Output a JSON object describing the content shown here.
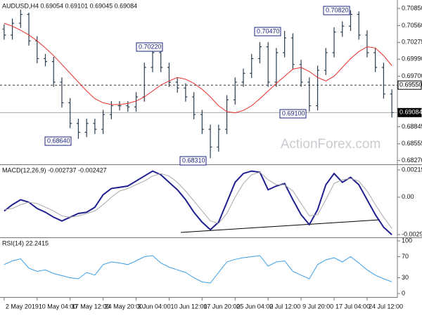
{
  "watermark": "ActionForex.com",
  "chart_data": [
    {
      "type": "ohlc",
      "title": "AUDUSD,H4 0.69054 0.69101 0.69045 0.69084",
      "color": "#2c3e50",
      "x": [
        0,
        2,
        4,
        6,
        8,
        10,
        12,
        14,
        16,
        18,
        20,
        22,
        24,
        26,
        28,
        30,
        32,
        34,
        36,
        38,
        40,
        42,
        44,
        46,
        48,
        50,
        52,
        54,
        56,
        58,
        60,
        62,
        64,
        66,
        68,
        70,
        72,
        74,
        76,
        78,
        80,
        82,
        84,
        86,
        88,
        90,
        92,
        94
      ],
      "open": [
        0.705,
        0.704,
        0.706,
        0.7075,
        0.703,
        0.7,
        0.6995,
        0.696,
        0.6925,
        0.689,
        0.6875,
        0.689,
        0.688,
        0.6905,
        0.692,
        0.692,
        0.6918,
        0.6935,
        0.6985,
        0.701,
        0.6985,
        0.696,
        0.695,
        0.6935,
        0.6905,
        0.688,
        0.685,
        0.688,
        0.693,
        0.696,
        0.6975,
        0.7,
        0.702,
        0.696,
        0.701,
        0.7035,
        0.699,
        0.696,
        0.692,
        0.698,
        0.701,
        0.7045,
        0.7055,
        0.7075,
        0.704,
        0.701,
        0.6985,
        0.694
      ],
      "high": [
        0.7058,
        0.7068,
        0.7083,
        0.7078,
        0.7038,
        0.7008,
        0.7003,
        0.6968,
        0.6933,
        0.6898,
        0.6898,
        0.6898,
        0.6913,
        0.6928,
        0.6928,
        0.6928,
        0.6943,
        0.6993,
        0.7022,
        0.7018,
        0.6993,
        0.6968,
        0.6958,
        0.6943,
        0.6913,
        0.6888,
        0.6888,
        0.6938,
        0.6968,
        0.6983,
        0.7008,
        0.7028,
        0.7028,
        0.7018,
        0.7047,
        0.7043,
        0.6998,
        0.6968,
        0.6988,
        0.7018,
        0.7053,
        0.7063,
        0.7082,
        0.708,
        0.7048,
        0.7018,
        0.6993,
        0.6948
      ],
      "low": [
        0.7032,
        0.7032,
        0.7052,
        0.7022,
        0.6992,
        0.6987,
        0.6952,
        0.6917,
        0.6882,
        0.6864,
        0.6867,
        0.6872,
        0.6872,
        0.6897,
        0.6912,
        0.691,
        0.691,
        0.6927,
        0.6977,
        0.6977,
        0.6952,
        0.6942,
        0.6927,
        0.6897,
        0.6872,
        0.6831,
        0.6842,
        0.6872,
        0.6922,
        0.6952,
        0.6967,
        0.6992,
        0.6952,
        0.6952,
        0.7002,
        0.6982,
        0.6952,
        0.691,
        0.6912,
        0.6972,
        0.7002,
        0.7037,
        0.7047,
        0.7032,
        0.7002,
        0.6977,
        0.6932,
        0.69
      ],
      "close": [
        0.704,
        0.706,
        0.7075,
        0.703,
        0.7,
        0.6995,
        0.696,
        0.6925,
        0.689,
        0.6875,
        0.689,
        0.688,
        0.6905,
        0.692,
        0.692,
        0.6918,
        0.6935,
        0.6985,
        0.701,
        0.6985,
        0.696,
        0.695,
        0.6935,
        0.6905,
        0.688,
        0.685,
        0.688,
        0.693,
        0.696,
        0.6975,
        0.7,
        0.702,
        0.696,
        0.701,
        0.7035,
        0.699,
        0.696,
        0.692,
        0.698,
        0.701,
        0.7045,
        0.7055,
        0.7075,
        0.704,
        0.701,
        0.6985,
        0.694,
        0.69084
      ],
      "moving_average": {
        "color": "#e8302a",
        "values": [
          0.706,
          0.7055,
          0.7048,
          0.704,
          0.703,
          0.7018,
          0.7005,
          0.699,
          0.6975,
          0.696,
          0.6945,
          0.6932,
          0.6925,
          0.6922,
          0.6922,
          0.6924,
          0.6928,
          0.6935,
          0.6945,
          0.6955,
          0.6962,
          0.6968,
          0.6965,
          0.6958,
          0.6948,
          0.6935,
          0.692,
          0.691,
          0.6908,
          0.6912,
          0.692,
          0.6932,
          0.6945,
          0.6958,
          0.697,
          0.6982,
          0.6985,
          0.6978,
          0.6968,
          0.6962,
          0.697,
          0.6985,
          0.7,
          0.7012,
          0.702,
          0.7018,
          0.7005,
          0.6988
        ]
      },
      "xlim": [
        -1,
        95
      ],
      "ylim": [
        0.6823,
        0.7097
      ],
      "yticks": [
        {
          "value": 0.7085,
          "label": "0.70850"
        },
        {
          "value": 0.7056,
          "label": "0.70560"
        },
        0.70275,
        {
          "value": 0.6999,
          "label": "0.69990"
        },
        {
          "value": 0.697,
          "label": "0.69700"
        },
        0.68845,
        0.68555,
        {
          "value": 0.6827,
          "label": "0.68270"
        }
      ],
      "hlines": [
        {
          "value": 0.6955,
          "label": "0.69550",
          "dashed": true
        },
        {
          "value": 0.69084,
          "label": "0.69084",
          "dashed": false
        }
      ],
      "annotations": [
        "0.68640",
        "0.70220",
        "0.68310",
        "0.70470",
        "0.69100",
        "0.70820"
      ]
    },
    {
      "type": "line",
      "title": "MACD(12,26,9) -0.002737 -0.002427",
      "x": [
        0,
        2,
        4,
        6,
        8,
        10,
        12,
        14,
        16,
        18,
        20,
        22,
        24,
        26,
        28,
        30,
        32,
        34,
        36,
        38,
        40,
        42,
        44,
        46,
        48,
        50,
        52,
        54,
        56,
        58,
        60,
        62,
        64,
        66,
        68,
        70,
        72,
        74,
        76,
        78,
        80,
        82,
        84,
        86,
        88,
        90,
        92,
        94
      ],
      "series": [
        {
          "color": "#1f1f8f",
          "values": [
            -0.0011,
            -0.0006,
            -0.0002,
            -0.0004,
            -0.0009,
            -0.0012,
            -0.0016,
            -0.0019,
            -0.0016,
            -0.0013,
            -0.0012,
            -0.0008,
            0.0002,
            0.0007,
            0.0008,
            0.0009,
            0.0013,
            0.0017,
            0.0021,
            0.0018,
            0.0012,
            0.0006,
            -0.0002,
            -0.0012,
            -0.002,
            -0.0026,
            -0.002,
            -0.0004,
            0.0012,
            0.0019,
            0.0021,
            0.002,
            0.0006,
            0.0009,
            0.0011,
            -0.0002,
            -0.0014,
            -0.0022,
            -0.001,
            0.001,
            0.0019,
            0.0012,
            0.0016,
            0.001,
            -0.0002,
            -0.0014,
            -0.0024,
            -0.003
          ]
        },
        {
          "color": "#a8a8a8",
          "values": [
            -0.001,
            -0.0009,
            -0.0006,
            -0.0004,
            -0.0005,
            -0.0008,
            -0.0011,
            -0.0015,
            -0.0016,
            -0.0015,
            -0.0013,
            -0.0011,
            -0.0006,
            0.0,
            0.0005,
            0.0007,
            0.001,
            0.0013,
            0.0017,
            0.0019,
            0.0017,
            0.0012,
            0.0005,
            -0.0003,
            -0.0011,
            -0.0019,
            -0.0021,
            -0.0013,
            0.0,
            0.0011,
            0.0018,
            0.002,
            0.0014,
            0.001,
            0.001,
            0.0005,
            -0.0005,
            -0.0015,
            -0.0014,
            -0.0002,
            0.0011,
            0.0014,
            0.0015,
            0.0013,
            0.0005,
            -0.0006,
            -0.0016,
            -0.0025
          ]
        }
      ],
      "xlim": [
        -1,
        95
      ],
      "ylim": [
        -0.00316,
        0.00247
      ],
      "yticks": [
        0.002191,
        {
          "value": 0,
          "label": "0.00"
        },
        -0.002993
      ]
    },
    {
      "type": "line",
      "title": "RSI(14) 22.2415",
      "x": [
        0,
        2,
        4,
        6,
        8,
        10,
        12,
        14,
        16,
        18,
        20,
        22,
        24,
        26,
        28,
        30,
        32,
        34,
        36,
        38,
        40,
        42,
        44,
        46,
        48,
        50,
        52,
        54,
        56,
        58,
        60,
        62,
        64,
        66,
        68,
        70,
        72,
        74,
        76,
        78,
        80,
        82,
        84,
        86,
        88,
        90,
        92,
        94
      ],
      "series": [
        {
          "color": "#3b9ee6",
          "values": [
            55,
            62,
            66,
            48,
            42,
            45,
            38,
            34,
            30,
            28,
            40,
            35,
            55,
            60,
            58,
            55,
            62,
            70,
            72,
            58,
            50,
            45,
            40,
            30,
            22,
            20,
            40,
            60,
            65,
            68,
            70,
            72,
            52,
            60,
            62,
            42,
            35,
            28,
            55,
            64,
            68,
            60,
            70,
            58,
            45,
            35,
            28,
            22.2415
          ]
        }
      ],
      "xlim": [
        -1,
        95
      ],
      "ylim": [
        0,
        100
      ],
      "yticks": [
        100,
        70,
        30,
        0
      ],
      "xticks": [
        {
          "value": 0,
          "label": "2 May 2019"
        },
        {
          "value": 8,
          "label": "10 May 04:00"
        },
        {
          "value": 16,
          "label": "17 May 12:00"
        },
        {
          "value": 24,
          "label": "24 May 20:00"
        },
        {
          "value": 32,
          "label": "3 Jun 04:00"
        },
        {
          "value": 40,
          "label": "10 Jun 12:00"
        },
        {
          "value": 48,
          "label": "17 Jun 20:00"
        },
        {
          "value": 56,
          "label": "25 Jun 04:00"
        },
        {
          "value": 64,
          "label": "2 Jul 12:00"
        },
        {
          "value": 72,
          "label": "9 Jul 20:00"
        },
        {
          "value": 80,
          "label": "17 Jul 04:00"
        },
        {
          "value": 88,
          "label": "24 Jul 12:00"
        }
      ]
    }
  ]
}
